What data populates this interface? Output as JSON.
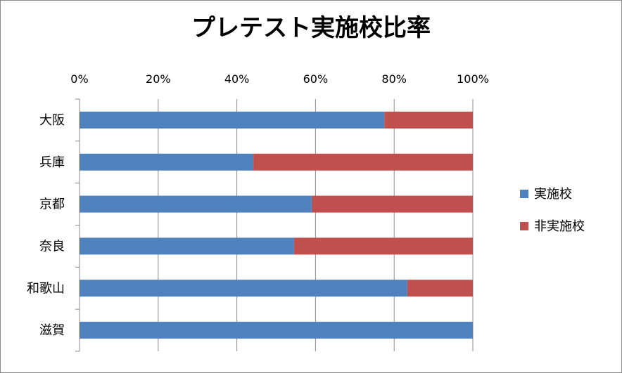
{
  "chart_data": {
    "type": "bar",
    "orientation": "horizontal",
    "stacked": "percent",
    "title": "プレテスト実施校比率",
    "categories": [
      "大阪",
      "兵庫",
      "京都",
      "奈良",
      "和歌山",
      "滋賀"
    ],
    "series": [
      {
        "name": "実施校",
        "values": [
          77.5,
          44.2,
          59.0,
          54.5,
          83.3,
          100.0
        ]
      },
      {
        "name": "非実施校",
        "values": [
          22.5,
          55.8,
          41.0,
          45.5,
          16.7,
          0.0
        ]
      }
    ],
    "xlim": [
      0,
      100
    ],
    "x_ticks": [
      "0%",
      "20%",
      "40%",
      "60%",
      "80%",
      "100%"
    ],
    "x_axis_position": "top",
    "grid": true,
    "legend_position": "right",
    "colors": [
      "#4f81bd",
      "#c0504d"
    ]
  }
}
